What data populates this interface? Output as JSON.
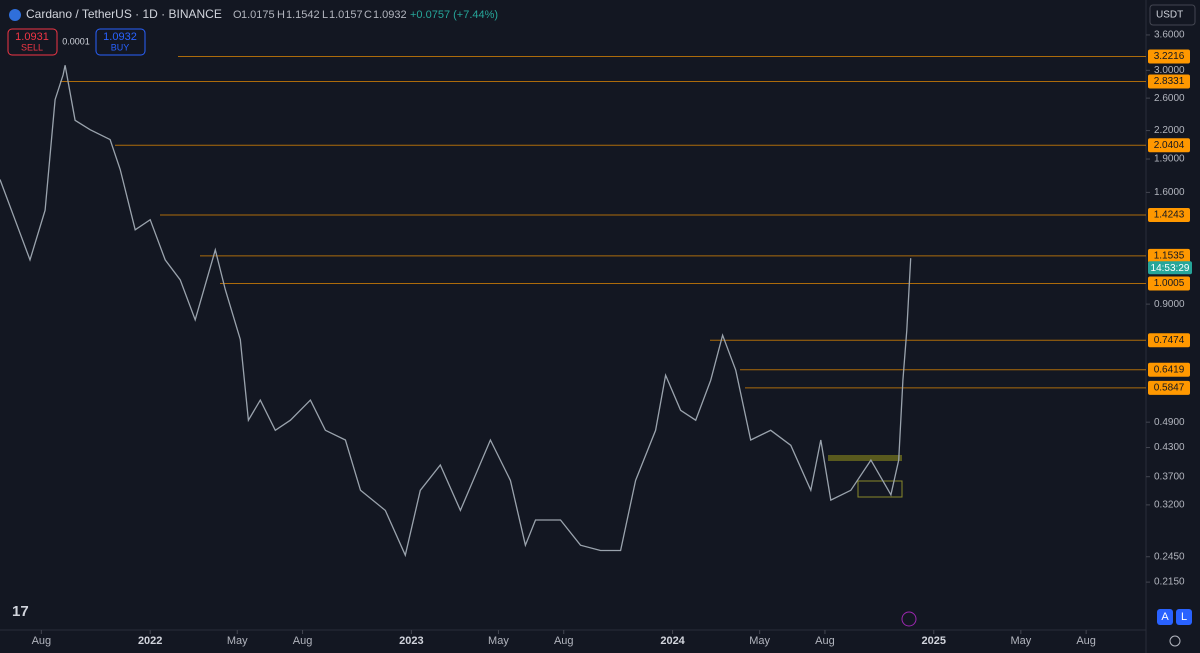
{
  "chart_data": {
    "type": "line",
    "title": "Cardano / TetherUS · 1D · BINANCE",
    "ohlc": {
      "o_label": "O",
      "open": "1.0175",
      "h_label": "H",
      "high": "1.1542",
      "l_label": "L",
      "low": "1.0157",
      "c_label": "C",
      "close": "1.0932",
      "change": "+0.0757 (+7.44%)"
    },
    "trade": {
      "sell_price": "1.0931",
      "sell": "SELL",
      "spread": "0.0001",
      "buy_price": "1.0932",
      "buy": "BUY"
    },
    "currency": "USDT",
    "countdown": "14:53:29",
    "buttons": [
      "A",
      "L"
    ],
    "log_scale": true,
    "grid": false,
    "color": "#9aa3ad",
    "level_color": "#ff9800",
    "x": [
      5.1,
      5.79,
      6.48,
      7.17,
      7.63,
      8.0,
      8.09,
      8.55,
      9.24,
      10.16,
      10.62,
      11.31,
      12.0,
      12.69,
      13.38,
      14.07,
      14.99,
      15.45,
      16.14,
      16.51,
      17.06,
      17.75,
      18.44,
      19.36,
      20.05,
      20.97,
      21.66,
      22.8,
      23.72,
      24.41,
      25.33,
      26.25,
      27.63,
      28.55,
      29.24,
      29.7,
      30.85,
      31.77,
      32.69,
      33.61,
      34.3,
      35.22,
      35.68,
      36.37,
      37.06,
      37.75,
      38.3,
      38.9,
      39.59,
      40.51,
      41.43,
      42.35,
      42.81,
      43.27,
      44.19,
      45.11,
      46.03,
      46.39,
      46.58,
      46.76,
      46.94
    ],
    "values": [
      1.71,
      1.39,
      1.13,
      1.46,
      2.58,
      2.93,
      3.08,
      2.32,
      2.21,
      2.1,
      1.8,
      1.32,
      1.39,
      1.13,
      1.02,
      0.83,
      1.19,
      0.97,
      0.75,
      0.495,
      0.549,
      0.47,
      0.495,
      0.549,
      0.47,
      0.447,
      0.345,
      0.311,
      0.247,
      0.345,
      0.393,
      0.311,
      0.447,
      0.363,
      0.26,
      0.296,
      0.296,
      0.26,
      0.253,
      0.253,
      0.363,
      0.47,
      0.624,
      0.521,
      0.495,
      0.608,
      0.767,
      0.641,
      0.447,
      0.47,
      0.435,
      0.345,
      0.447,
      0.328,
      0.345,
      0.403,
      0.337,
      0.403,
      0.608,
      0.787,
      1.14
    ],
    "levels": [
      3.2216,
      2.8331,
      2.0404,
      1.4243,
      1.1535,
      1.0005,
      0.7474,
      0.6419,
      0.5847
    ],
    "xlim": [
      5.1,
      57.75
    ],
    "ylim": [
      0.168,
      4.31
    ],
    "xticks": [
      {
        "value": 7,
        "label": "Aug"
      },
      {
        "value": 12,
        "label": "2022"
      },
      {
        "value": 16,
        "label": "May"
      },
      {
        "value": 19,
        "label": "Aug"
      },
      {
        "value": 24,
        "label": "2023"
      },
      {
        "value": 28,
        "label": "May"
      },
      {
        "value": 31,
        "label": "Aug"
      },
      {
        "value": 36,
        "label": "2024"
      },
      {
        "value": 40,
        "label": "May"
      },
      {
        "value": 43,
        "label": "Aug"
      },
      {
        "value": 48,
        "label": "2025"
      },
      {
        "value": 52,
        "label": "May"
      },
      {
        "value": 55,
        "label": "Aug"
      }
    ],
    "yticks": [
      {
        "value": 3.6,
        "label": "3.6000"
      },
      {
        "value": 3.0,
        "label": "3.0000"
      },
      {
        "value": 2.6,
        "label": "2.6000"
      },
      {
        "value": 2.2,
        "label": "2.2000"
      },
      {
        "value": 1.9,
        "label": "1.9000"
      },
      {
        "value": 1.6,
        "label": "1.6000"
      },
      {
        "value": 0.9,
        "label": "0.9000"
      },
      {
        "value": 0.49,
        "label": "0.4900"
      },
      {
        "value": 0.43,
        "label": "0.4300"
      },
      {
        "value": 0.37,
        "label": "0.3700"
      },
      {
        "value": 0.32,
        "label": "0.3200"
      },
      {
        "value": 0.245,
        "label": "0.2450"
      },
      {
        "value": 0.215,
        "label": "0.2150"
      }
    ]
  }
}
